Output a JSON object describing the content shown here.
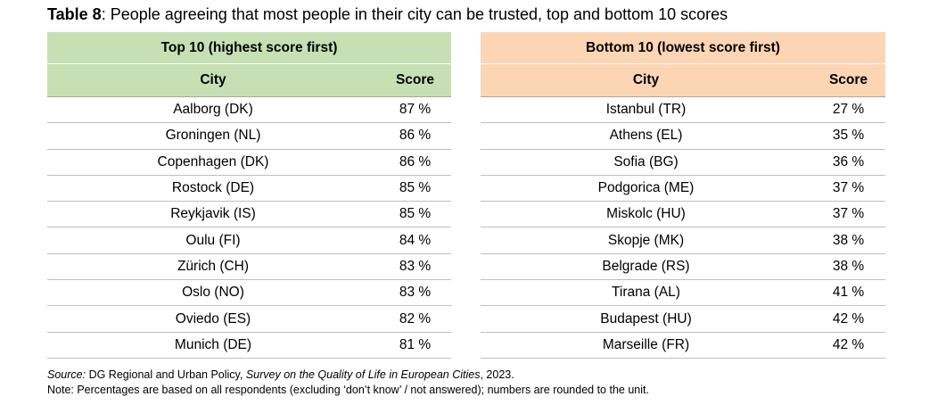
{
  "title": {
    "label": "Table 8",
    "text": ": People agreeing that most people in their city can be trusted, top and bottom 10 scores"
  },
  "top_table": {
    "heading": "Top 10 (highest score first)",
    "col_city": "City",
    "col_score": "Score",
    "rows": [
      {
        "city": "Aalborg (DK)",
        "score": "87 %"
      },
      {
        "city": "Groningen (NL)",
        "score": "86 %"
      },
      {
        "city": "Copenhagen (DK)",
        "score": "86 %"
      },
      {
        "city": "Rostock (DE)",
        "score": "85 %"
      },
      {
        "city": "Reykjavik (IS)",
        "score": "85 %"
      },
      {
        "city": "Oulu (FI)",
        "score": "84 %"
      },
      {
        "city": "Zürich (CH)",
        "score": "83 %"
      },
      {
        "city": "Oslo (NO)",
        "score": "83 %"
      },
      {
        "city": "Oviedo (ES)",
        "score": "82 %"
      },
      {
        "city": "Munich (DE)",
        "score": "81 %"
      }
    ]
  },
  "bottom_table": {
    "heading": "Bottom 10 (lowest score first)",
    "col_city": "City",
    "col_score": "Score",
    "rows": [
      {
        "city": "Istanbul (TR)",
        "score": "27 %"
      },
      {
        "city": "Athens (EL)",
        "score": "35 %"
      },
      {
        "city": "Sofia (BG)",
        "score": "36 %"
      },
      {
        "city": "Podgorica (ME)",
        "score": "37 %"
      },
      {
        "city": "Miskolc (HU)",
        "score": "37 %"
      },
      {
        "city": "Skopje (MK)",
        "score": "38 %"
      },
      {
        "city": "Belgrade (RS)",
        "score": "38 %"
      },
      {
        "city": "Tirana (AL)",
        "score": "41 %"
      },
      {
        "city": "Budapest (HU)",
        "score": "42 %"
      },
      {
        "city": "Marseille (FR)",
        "score": "42 %"
      }
    ]
  },
  "source": {
    "label": "Source:",
    "org": " DG Regional and Urban Policy, ",
    "survey": "Survey on the Quality of Life in European Cities",
    "year": ", 2023."
  },
  "note": "Note: Percentages are based on all respondents (excluding ‘don’t know’ / not answered); numbers are rounded to the unit.",
  "colors": {
    "top_header": "#c6e0b4",
    "bottom_header": "#fcd5b4"
  }
}
